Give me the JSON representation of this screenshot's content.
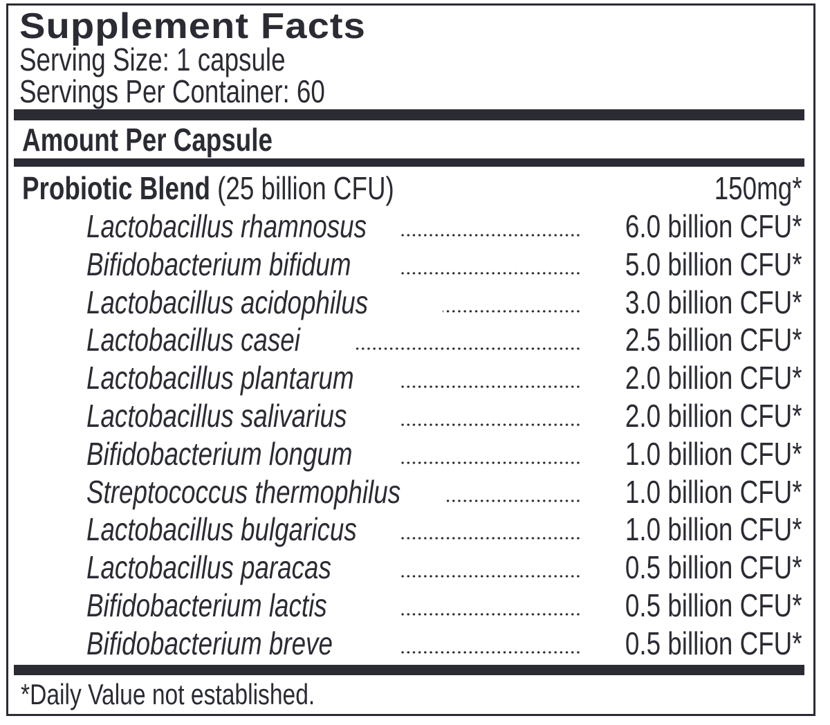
{
  "title": "Supplement Facts",
  "serving_size": "Serving Size: 1 capsule",
  "servings_per_container": "Servings Per Container: 60",
  "amount_header": "Amount Per Capsule",
  "blend": {
    "name": "Probiotic Blend",
    "detail": "(25 billion CFU)",
    "amount": "150mg*"
  },
  "ingredients": [
    {
      "name": "Lactobacillus rhamnosus",
      "amount": "6.0 billion CFU*"
    },
    {
      "name": "Bifidobacterium bifidum",
      "amount": "5.0 billion CFU*"
    },
    {
      "name": "Lactobacillus acidophilus",
      "amount": "3.0 billion CFU*"
    },
    {
      "name": "Lactobacillus casei",
      "amount": "2.5 billion CFU*"
    },
    {
      "name": "Lactobacillus plantarum",
      "amount": "2.0 billion CFU*"
    },
    {
      "name": "Lactobacillus salivarius",
      "amount": "2.0 billion CFU*"
    },
    {
      "name": "Bifidobacterium longum",
      "amount": "1.0 billion CFU*"
    },
    {
      "name": "Streptococcus thermophilus",
      "amount": "1.0 billion CFU*"
    },
    {
      "name": "Lactobacillus bulgaricus",
      "amount": "1.0 billion CFU*"
    },
    {
      "name": "Lactobacillus paracas",
      "amount": "0.5 billion CFU*"
    },
    {
      "name": "Bifidobacterium lactis",
      "amount": "0.5 billion CFU*"
    },
    {
      "name": "Bifidobacterium breve",
      "amount": "0.5 billion CFU*"
    }
  ],
  "footnote": "*Daily Value not established.",
  "colors": {
    "ink": "#2a2b33",
    "background": "#ffffff"
  }
}
